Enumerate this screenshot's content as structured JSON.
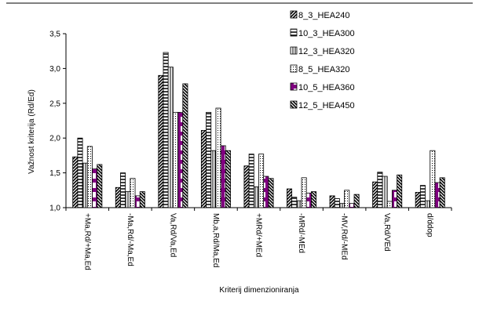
{
  "chart_data": {
    "type": "bar",
    "title": "",
    "xlabel": "Kriterij dimenzioniranja",
    "ylabel": "Važnost kriterija (Rd/Ed)",
    "ylim": [
      1.0,
      3.5
    ],
    "yticks": [
      "1,0",
      "1,5",
      "2,0",
      "2,5",
      "3,0",
      "3,5"
    ],
    "grid": false,
    "legend_position": "top-right",
    "categories": [
      "+Ma,Rd/+Ma,Ed",
      "-Ma,Rd/-Ma,Ed",
      "Va,Rd/Va,Ed",
      "Mb,a,Rd/Ma,Ed",
      "+MRd/+MEd",
      "-MRd/-MEd",
      "-MV,Rd/-MEd",
      "Va,Rd/VEd",
      "d/ddop"
    ],
    "series": [
      {
        "name": "8_3_HEA240",
        "pattern": "diag-up",
        "values": [
          1.73,
          1.29,
          2.9,
          2.11,
          1.6,
          1.27,
          1.17,
          1.37,
          1.22
        ]
      },
      {
        "name": "10_3_HEA300",
        "pattern": "horiz",
        "values": [
          2.0,
          1.5,
          3.23,
          2.37,
          1.77,
          1.15,
          1.13,
          1.51,
          1.32
        ]
      },
      {
        "name": "12_3_HEA320",
        "pattern": "vert",
        "values": [
          1.64,
          1.23,
          3.02,
          1.82,
          1.3,
          1.1,
          1.06,
          1.45,
          1.1
        ]
      },
      {
        "name": "8_5_HEA320",
        "pattern": "dots",
        "values": [
          1.88,
          1.42,
          2.37,
          2.43,
          1.77,
          1.43,
          1.25,
          1.09,
          1.82
        ]
      },
      {
        "name": "10_5_HEA360",
        "pattern": "purple",
        "values": [
          1.56,
          1.17,
          2.37,
          1.89,
          1.45,
          1.21,
          1.06,
          1.25,
          1.36
        ]
      },
      {
        "name": "12_5_HEA450",
        "pattern": "diag-down",
        "values": [
          1.62,
          1.23,
          2.78,
          1.82,
          1.42,
          1.23,
          1.19,
          1.47,
          1.43
        ]
      }
    ],
    "colors": {
      "accent": "#800080",
      "frame": "#000000"
    }
  }
}
